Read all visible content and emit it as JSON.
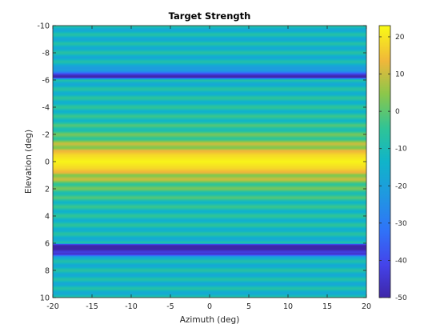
{
  "chart_data": {
    "type": "heatmap",
    "title": "Target Strength",
    "xlabel": "Azimuth (deg)",
    "ylabel": "Elevation (deg)",
    "xlim": [
      -20,
      20
    ],
    "ylim": [
      -10,
      10
    ],
    "y_direction": "reverse",
    "x_ticks": [
      "-20",
      "-15",
      "-10",
      "-5",
      "0",
      "5",
      "10",
      "15",
      "20"
    ],
    "y_ticks": [
      "-10",
      "-8",
      "-6",
      "-4",
      "-2",
      "0",
      "2",
      "4",
      "6",
      "8",
      "10"
    ],
    "colorbar": {
      "colormap": "parula",
      "clim": [
        -50,
        23
      ],
      "ticks": [
        "-50",
        "-40",
        "-30",
        "-20",
        "-10",
        "0",
        "10",
        "20"
      ]
    },
    "grid": false,
    "pattern": "horizontal bands: value varies with elevation only, peak about 22 at elevation 0, decreasing with side-lobe ripples toward edges; deep nulls near elevation -6.2, 6.1 and 6.8",
    "elevation_profile": {
      "elevation": [
        -10,
        -9,
        -8,
        -7,
        -6.2,
        -6,
        -5,
        -4,
        -3,
        -2,
        -1.5,
        -1,
        -0.5,
        0,
        0.5,
        1,
        1.5,
        2,
        3,
        4,
        5,
        6,
        6.1,
        6.8,
        7,
        8,
        9,
        10
      ],
      "value": [
        -12,
        -13,
        -12,
        -14,
        -48,
        -13,
        -11,
        -10,
        -8,
        -3,
        2,
        9,
        18,
        22,
        18,
        9,
        2,
        -3,
        -8,
        -10,
        -11,
        -13,
        -48,
        -48,
        -14,
        -12,
        -13,
        -12
      ]
    }
  }
}
